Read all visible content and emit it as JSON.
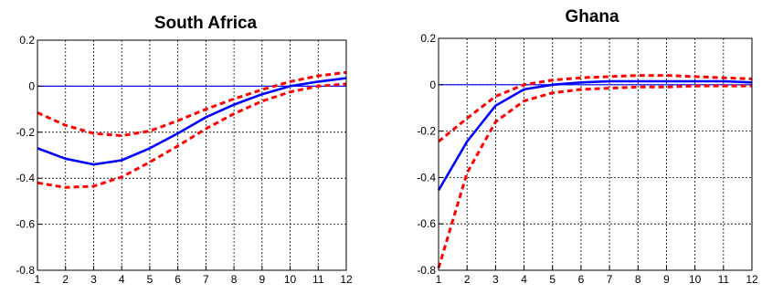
{
  "chart_data": [
    {
      "type": "line",
      "title": "South Africa",
      "x": [
        1,
        2,
        3,
        4,
        5,
        6,
        7,
        8,
        9,
        10,
        11,
        12
      ],
      "xlim": [
        1,
        12
      ],
      "ylim": [
        -0.8,
        0.2
      ],
      "yticks": [
        -0.8,
        -0.6,
        -0.4,
        -0.2,
        0,
        0.2
      ],
      "grid": true,
      "zero_line": 0,
      "series": [
        {
          "role": "response",
          "style": "solid",
          "color": "#0000ff",
          "values": [
            -0.27,
            -0.315,
            -0.34,
            -0.322,
            -0.27,
            -0.205,
            -0.135,
            -0.08,
            -0.035,
            0.0,
            0.02,
            0.035
          ]
        },
        {
          "role": "upper-band",
          "style": "dashed",
          "color": "#ff0000",
          "values": [
            -0.115,
            -0.17,
            -0.205,
            -0.215,
            -0.195,
            -0.15,
            -0.1,
            -0.055,
            -0.015,
            0.02,
            0.045,
            0.06
          ]
        },
        {
          "role": "lower-band",
          "style": "dashed",
          "color": "#ff0000",
          "values": [
            -0.42,
            -0.44,
            -0.435,
            -0.395,
            -0.33,
            -0.26,
            -0.185,
            -0.12,
            -0.065,
            -0.025,
            0.0,
            0.01
          ]
        }
      ]
    },
    {
      "type": "line",
      "title": "Ghana",
      "x": [
        1,
        2,
        3,
        4,
        5,
        6,
        7,
        8,
        9,
        10,
        11,
        12
      ],
      "xlim": [
        1,
        12
      ],
      "ylim": [
        -0.8,
        0.2
      ],
      "yticks": [
        -0.8,
        -0.6,
        -0.4,
        -0.2,
        0,
        0.2
      ],
      "grid": true,
      "zero_line": 0,
      "series": [
        {
          "role": "response",
          "style": "solid",
          "color": "#0000ff",
          "values": [
            -0.455,
            -0.245,
            -0.09,
            -0.02,
            0.0,
            0.01,
            0.015,
            0.015,
            0.015,
            0.015,
            0.015,
            0.01
          ]
        },
        {
          "role": "upper-band",
          "style": "dashed",
          "color": "#ff0000",
          "values": [
            -0.245,
            -0.145,
            -0.05,
            0.0,
            0.02,
            0.03,
            0.035,
            0.04,
            0.04,
            0.035,
            0.03,
            0.025
          ]
        },
        {
          "role": "lower-band",
          "style": "dashed",
          "color": "#ff0000",
          "values": [
            -0.79,
            -0.38,
            -0.16,
            -0.07,
            -0.035,
            -0.02,
            -0.015,
            -0.01,
            -0.01,
            -0.005,
            -0.005,
            -0.005
          ]
        }
      ]
    }
  ]
}
